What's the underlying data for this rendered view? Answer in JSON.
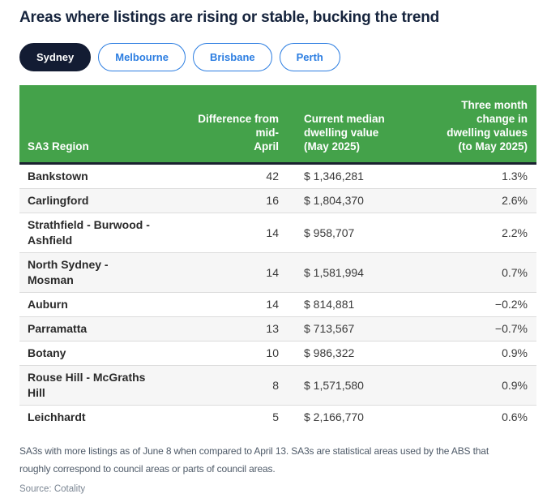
{
  "title": "Areas where listings are rising or stable, bucking the trend",
  "tabs": [
    {
      "label": "Sydney",
      "active": true
    },
    {
      "label": "Melbourne",
      "active": false
    },
    {
      "label": "Brisbane",
      "active": false
    },
    {
      "label": "Perth",
      "active": false
    }
  ],
  "table": {
    "columns": [
      "SA3 Region",
      "Difference from mid-\nApril",
      "Current median\ndwelling value\n(May 2025)",
      "Three month\nchange in\ndwelling values\n(to May 2025)"
    ],
    "rows": [
      {
        "region": "Bankstown",
        "difference": "42",
        "value": "$ 1,346,281",
        "change": "1.3%"
      },
      {
        "region": "Carlingford",
        "difference": "16",
        "value": "$ 1,804,370",
        "change": "2.6%"
      },
      {
        "region": "Strathfield - Burwood -\nAshfield",
        "difference": "14",
        "value": "$ 958,707",
        "change": "2.2%"
      },
      {
        "region": "North Sydney -\nMosman",
        "difference": "14",
        "value": "$ 1,581,994",
        "change": "0.7%"
      },
      {
        "region": "Auburn",
        "difference": "14",
        "value": "$ 814,881",
        "change": "−0.2%"
      },
      {
        "region": "Parramatta",
        "difference": "13",
        "value": "$ 713,567",
        "change": "−0.7%"
      },
      {
        "region": "Botany",
        "difference": "10",
        "value": "$ 986,322",
        "change": "0.9%"
      },
      {
        "region": "Rouse Hill - McGraths\nHill",
        "difference": "8",
        "value": "$ 1,571,580",
        "change": "0.9%"
      },
      {
        "region": "Leichhardt",
        "difference": "5",
        "value": "$ 2,166,770",
        "change": "0.6%"
      }
    ]
  },
  "footnote": "SA3s with more listings as of June 8 when compared to April 13. SA3s are statistical areas used by the ABS that\nroughly correspond to council areas or parts of council areas.",
  "source": "Source: Cotality",
  "colors": {
    "header_green": "#44a24a",
    "navy": "#131c33",
    "tab_blue": "#2b7de1",
    "row_alt": "#f6f6f6",
    "divider": "#dcdcdc",
    "header_border": "#1b2130",
    "footnote_text": "#4e5a68",
    "source_text": "#7b8693"
  },
  "chart_data": {
    "type": "table",
    "title": "Areas where listings are rising or stable, bucking the trend",
    "selected_tab": "Sydney",
    "tabs": [
      "Sydney",
      "Melbourne",
      "Brisbane",
      "Perth"
    ],
    "columns": [
      "SA3 Region",
      "Difference from mid-April",
      "Current median dwelling value (May 2025)",
      "Three month change in dwelling values (to May 2025)"
    ],
    "rows": [
      [
        "Bankstown",
        42,
        1346281,
        1.3
      ],
      [
        "Carlingford",
        16,
        1804370,
        2.6
      ],
      [
        "Strathfield - Burwood - Ashfield",
        14,
        958707,
        2.2
      ],
      [
        "North Sydney - Mosman",
        14,
        1581994,
        0.7
      ],
      [
        "Auburn",
        14,
        814881,
        -0.2
      ],
      [
        "Parramatta",
        13,
        713567,
        -0.7
      ],
      [
        "Botany",
        10,
        986322,
        0.9
      ],
      [
        "Rouse Hill - McGraths Hill",
        8,
        1571580,
        0.9
      ],
      [
        "Leichhardt",
        5,
        2166770,
        0.6
      ]
    ],
    "units": {
      "difference": "count of listings",
      "value": "AUD",
      "change": "percent"
    },
    "footnote": "SA3s with more listings as of June 8 when compared to April 13. SA3s are statistical areas used by the ABS that roughly correspond to council areas or parts of council areas.",
    "source": "Cotality"
  }
}
